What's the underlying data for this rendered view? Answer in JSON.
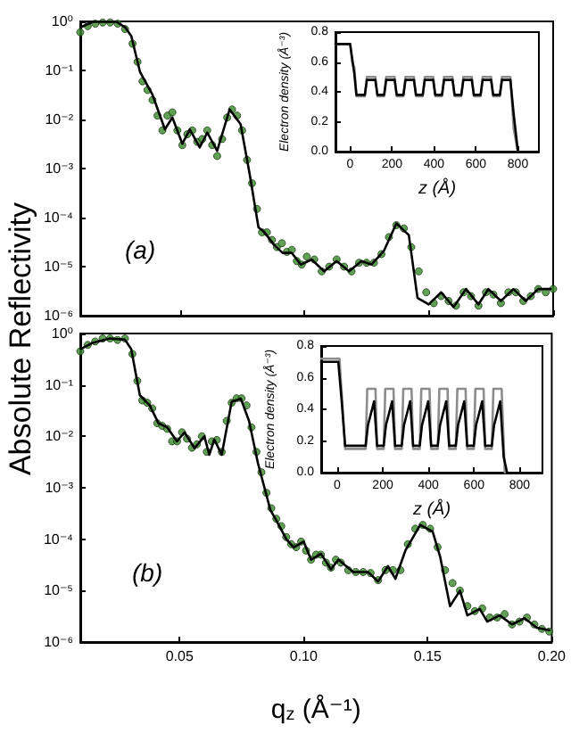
{
  "chart_data": [
    {
      "type": "line",
      "ylabel": "Absolute Reflectivity",
      "annotations": [
        "(a)"
      ],
      "log": true,
      "tick_labels": "y",
      "xlim": [
        0.01,
        0.2
      ],
      "xticks": [
        0.05,
        0.1,
        0.15,
        0.2
      ],
      "ylim": [
        1e-06,
        1
      ],
      "yticks": [
        {
          "value": 1e-06,
          "label": "10⁻⁶"
        },
        {
          "value": 1e-05,
          "label": "10⁻⁵"
        },
        {
          "value": 0.0001,
          "label": "10⁻⁴"
        },
        {
          "value": 0.001,
          "label": "10⁻³"
        },
        {
          "value": 0.01,
          "label": "10⁻²"
        },
        {
          "value": 0.1,
          "label": "10⁻¹"
        },
        {
          "value": 1,
          "label": "10⁰"
        }
      ],
      "series": [
        {
          "type": "scatter",
          "marker": "circle",
          "color": "#3a8a2a",
          "x": [
            0.01,
            0.013,
            0.016,
            0.019,
            0.022,
            0.025,
            0.028,
            0.031,
            0.033,
            0.035,
            0.037,
            0.039,
            0.041,
            0.043,
            0.045,
            0.047,
            0.049,
            0.051,
            0.053,
            0.055,
            0.057,
            0.059,
            0.061,
            0.063,
            0.065,
            0.067,
            0.069,
            0.071,
            0.073,
            0.075,
            0.077,
            0.079,
            0.081,
            0.083,
            0.085,
            0.087,
            0.089,
            0.091,
            0.093,
            0.095,
            0.097,
            0.099,
            0.101,
            0.104,
            0.107,
            0.11,
            0.113,
            0.116,
            0.119,
            0.122,
            0.125,
            0.128,
            0.131,
            0.134,
            0.137,
            0.14,
            0.143,
            0.146,
            0.149,
            0.152,
            0.155,
            0.158,
            0.161,
            0.164,
            0.167,
            0.17,
            0.173,
            0.176,
            0.179,
            0.182,
            0.185,
            0.188,
            0.191,
            0.194,
            0.197,
            0.2
          ],
          "values": [
            0.6,
            0.8,
            0.9,
            0.95,
            0.95,
            0.9,
            0.7,
            0.35,
            0.15,
            0.06,
            0.04,
            0.025,
            0.012,
            0.006,
            0.012,
            0.014,
            0.006,
            0.003,
            0.005,
            0.006,
            0.0035,
            0.004,
            0.006,
            0.003,
            0.0018,
            0.004,
            0.011,
            0.016,
            0.012,
            0.006,
            0.0015,
            0.0005,
            0.00015,
            5e-05,
            5e-05,
            3.5e-05,
            2.5e-05,
            3e-05,
            2e-05,
            2.2e-05,
            1.3e-05,
            1.1e-05,
            1.6e-05,
            1.4e-05,
            8e-06,
            1e-05,
            1.4e-05,
            1e-05,
            8e-06,
            1.2e-05,
            1.2e-05,
            1.2e-05,
            1.8e-05,
            4e-05,
            7e-05,
            6e-05,
            2.5e-05,
            8e-06,
            3e-06,
            1.8e-06,
            2.5e-06,
            2e-06,
            1.6e-06,
            3e-06,
            2.5e-06,
            1.6e-06,
            3e-06,
            2.7e-06,
            1.8e-06,
            3e-06,
            3e-06,
            2e-06,
            2.5e-06,
            3.5e-06,
            3e-06,
            3.5e-06
          ]
        },
        {
          "line_style": "solid",
          "color": "#000000",
          "x": [
            0.0102,
            0.015,
            0.0245,
            0.028,
            0.0305,
            0.034,
            0.039,
            0.044,
            0.047,
            0.051,
            0.054,
            0.058,
            0.061,
            0.065,
            0.07,
            0.0744,
            0.078,
            0.0816,
            0.084,
            0.0878,
            0.0913,
            0.095,
            0.0986,
            0.103,
            0.108,
            0.113,
            0.118,
            0.123,
            0.127,
            0.132,
            0.137,
            0.142,
            0.1455,
            0.15,
            0.155,
            0.16,
            0.165,
            0.17,
            0.174,
            0.179,
            0.184,
            0.189,
            0.194,
            0.199
          ],
          "values": [
            0.76,
            0.98,
            0.98,
            0.76,
            0.5,
            0.093,
            0.032,
            0.0063,
            0.011,
            0.0032,
            0.0063,
            0.0027,
            0.0054,
            0.0023,
            0.016,
            0.008,
            0.0008,
            6.3e-05,
            5e-05,
            2.8e-05,
            1.9e-05,
            1.9e-05,
            1.1e-05,
            1.4e-05,
            8e-06,
            1.3e-05,
            8e-06,
            1.3e-05,
            1.1e-05,
            2.1e-05,
            7.6e-05,
            4.4e-05,
            2.3e-06,
            1.7e-06,
            3e-06,
            1.5e-06,
            3.5e-06,
            1.7e-06,
            3.5e-06,
            2e-06,
            3.5e-06,
            2e-06,
            3.5e-06,
            3.5e-06
          ]
        }
      ]
    },
    {
      "type": "line",
      "xlabel": "z (Å)",
      "ylabel": "Electron density (Å⁻³)",
      "xlim": [
        -70,
        900
      ],
      "xticks": [
        0,
        200,
        400,
        600,
        800
      ],
      "ylim": [
        0,
        0.8
      ],
      "yticks": [
        {
          "value": 0,
          "label": "0.0"
        },
        0.2,
        0.4,
        0.6,
        0.8
      ],
      "series": [
        {
          "color": "#8c8c8c",
          "x": [
            -70,
            0,
            10,
            20,
            30,
            70,
            80,
            120,
            130,
            162,
            172,
            212,
            222,
            254,
            264,
            304,
            314,
            346,
            356,
            396,
            406,
            438,
            448,
            488,
            498,
            530,
            540,
            580,
            590,
            622,
            632,
            672,
            682,
            714,
            724,
            764,
            780,
            800
          ],
          "values": [
            0.72,
            0.72,
            0.6,
            0.56,
            0.37,
            0.37,
            0.5,
            0.5,
            0.37,
            0.37,
            0.5,
            0.5,
            0.37,
            0.37,
            0.5,
            0.5,
            0.37,
            0.37,
            0.5,
            0.5,
            0.37,
            0.37,
            0.5,
            0.5,
            0.37,
            0.37,
            0.5,
            0.5,
            0.37,
            0.37,
            0.5,
            0.5,
            0.37,
            0.37,
            0.5,
            0.5,
            0.15,
            0
          ]
        },
        {
          "color": "#000000",
          "x": [
            -70,
            0,
            10,
            20,
            30,
            70,
            80,
            120,
            130,
            162,
            172,
            212,
            222,
            254,
            264,
            304,
            314,
            346,
            356,
            396,
            406,
            438,
            448,
            488,
            498,
            530,
            540,
            580,
            590,
            622,
            632,
            672,
            682,
            714,
            724,
            764,
            780,
            800
          ],
          "values": [
            0.72,
            0.72,
            0.62,
            0.52,
            0.38,
            0.38,
            0.48,
            0.48,
            0.38,
            0.38,
            0.48,
            0.48,
            0.38,
            0.38,
            0.48,
            0.48,
            0.38,
            0.38,
            0.48,
            0.48,
            0.38,
            0.38,
            0.48,
            0.48,
            0.38,
            0.38,
            0.48,
            0.48,
            0.38,
            0.38,
            0.48,
            0.48,
            0.38,
            0.38,
            0.48,
            0.48,
            0.25,
            0
          ]
        }
      ]
    },
    {
      "type": "line",
      "xlabel": "q$_{z}$ (Å⁻¹)",
      "annotations": [
        "(b)"
      ],
      "log": true,
      "xlim": [
        0.01,
        0.2
      ],
      "xticks": [
        0.05,
        {
          "value": 0.1,
          "label": "0.10"
        },
        0.15,
        {
          "value": 0.2,
          "label": "0.20"
        }
      ],
      "ylim": [
        1e-06,
        1
      ],
      "yticks": [
        {
          "value": 1e-06,
          "label": "10⁻⁶"
        },
        {
          "value": 1e-05,
          "label": "10⁻⁵"
        },
        {
          "value": 0.0001,
          "label": "10⁻⁴"
        },
        {
          "value": 0.001,
          "label": "10⁻³"
        },
        {
          "value": 0.01,
          "label": "10⁻²"
        },
        {
          "value": 0.1,
          "label": "10⁻¹"
        },
        {
          "value": 1,
          "label": "10⁰"
        }
      ],
      "series": [
        {
          "type": "scatter",
          "marker": "circle",
          "color": "#3a8a2a",
          "x": [
            0.01,
            0.013,
            0.016,
            0.019,
            0.022,
            0.025,
            0.028,
            0.031,
            0.033,
            0.035,
            0.037,
            0.039,
            0.041,
            0.043,
            0.045,
            0.047,
            0.049,
            0.051,
            0.053,
            0.055,
            0.057,
            0.059,
            0.061,
            0.063,
            0.065,
            0.067,
            0.069,
            0.071,
            0.073,
            0.075,
            0.077,
            0.079,
            0.081,
            0.083,
            0.085,
            0.087,
            0.089,
            0.091,
            0.093,
            0.095,
            0.097,
            0.099,
            0.101,
            0.103,
            0.105,
            0.107,
            0.109,
            0.111,
            0.113,
            0.115,
            0.118,
            0.121,
            0.124,
            0.127,
            0.13,
            0.133,
            0.136,
            0.139,
            0.142,
            0.145,
            0.148,
            0.151,
            0.154,
            0.157,
            0.16,
            0.163,
            0.166,
            0.169,
            0.172,
            0.175,
            0.178,
            0.181,
            0.184,
            0.187,
            0.19,
            0.193,
            0.196,
            0.199
          ],
          "values": [
            0.45,
            0.6,
            0.7,
            0.8,
            0.8,
            0.75,
            0.8,
            0.4,
            0.12,
            0.05,
            0.045,
            0.035,
            0.018,
            0.016,
            0.014,
            0.008,
            0.008,
            0.012,
            0.009,
            0.006,
            0.007,
            0.01,
            0.005,
            0.008,
            0.0085,
            0.005,
            0.02,
            0.045,
            0.055,
            0.055,
            0.04,
            0.015,
            0.005,
            0.002,
            0.0008,
            0.0004,
            0.00025,
            0.00018,
            0.00011,
            8e-05,
            7e-05,
            9e-05,
            6e-05,
            4e-05,
            5e-05,
            5e-05,
            3.5e-05,
            2.8e-05,
            4e-05,
            3.5e-05,
            2.5e-05,
            2.3e-05,
            2.3e-05,
            2.2e-05,
            1.6e-05,
            2.5e-05,
            2.5e-05,
            2.5e-05,
            8e-05,
            0.00016,
            0.00019,
            0.00016,
            7e-05,
            2.5e-05,
            1.4e-05,
            1e-05,
            5e-06,
            4e-06,
            4.5e-06,
            3e-06,
            3e-06,
            3.5e-06,
            2.2e-06,
            2.5e-06,
            3e-06,
            2.2e-06,
            1.8e-06,
            1.6e-06
          ]
        },
        {
          "line_style": "solid",
          "color": "#000000",
          "x": [
            0.0102,
            0.015,
            0.022,
            0.028,
            0.0305,
            0.034,
            0.038,
            0.0415,
            0.045,
            0.049,
            0.052,
            0.056,
            0.06,
            0.062,
            0.064,
            0.067,
            0.071,
            0.0747,
            0.078,
            0.0816,
            0.0866,
            0.09,
            0.093,
            0.096,
            0.1,
            0.103,
            0.107,
            0.111,
            0.114,
            0.12,
            0.126,
            0.13,
            0.134,
            0.137,
            0.141,
            0.147,
            0.152,
            0.155,
            0.159,
            0.163,
            0.166,
            0.171,
            0.174,
            0.179,
            0.184,
            0.189,
            0.194,
            0.199
          ],
          "values": [
            0.5,
            0.66,
            0.8,
            0.76,
            0.5,
            0.063,
            0.04,
            0.018,
            0.015,
            0.008,
            0.012,
            0.0059,
            0.01,
            0.0044,
            0.0087,
            0.0044,
            0.047,
            0.054,
            0.02,
            0.003,
            0.00037,
            0.00019,
            0.0001,
            6.9e-05,
            9e-05,
            4e-05,
            5.2e-05,
            2.6e-05,
            4e-05,
            2.3e-05,
            2.3e-05,
            1.5e-05,
            3e-05,
            1.7e-05,
            6e-05,
            0.00019,
            0.00014,
            4.6e-05,
            5e-06,
            1e-05,
            3.3e-06,
            4.4e-06,
            2.5e-06,
            3.3e-06,
            2.2e-06,
            2.9e-06,
            1.9e-06,
            1.7e-06
          ]
        }
      ]
    },
    {
      "type": "line",
      "xlabel": "z (Å)",
      "ylabel": "Electron density (Å⁻³)",
      "xlim": [
        -70,
        900
      ],
      "xticks": [
        0,
        200,
        400,
        600,
        800
      ],
      "ylim": [
        0,
        0.8
      ],
      "yticks": [
        {
          "value": 0,
          "label": "0.0"
        },
        0.2,
        0.4,
        0.6,
        0.8
      ],
      "series": [
        {
          "color": "#8c8c8c",
          "x": [
            -70,
            10,
            20,
            35,
            125,
            132,
            168,
            175,
            204,
            211,
            247,
            254,
            283,
            290,
            326,
            333,
            362,
            369,
            405,
            412,
            441,
            448,
            484,
            491,
            520,
            527,
            563,
            570,
            599,
            606,
            642,
            649,
            678,
            685,
            721,
            735
          ],
          "values": [
            0.72,
            0.72,
            0.5,
            0.15,
            0.15,
            0.53,
            0.53,
            0.15,
            0.15,
            0.53,
            0.53,
            0.15,
            0.15,
            0.53,
            0.53,
            0.15,
            0.15,
            0.53,
            0.53,
            0.15,
            0.15,
            0.53,
            0.53,
            0.15,
            0.15,
            0.53,
            0.53,
            0.15,
            0.15,
            0.53,
            0.53,
            0.15,
            0.15,
            0.53,
            0.53,
            0
          ]
        },
        {
          "color": "#000000",
          "x": [
            -70,
            5,
            20,
            35,
            125,
            135,
            162,
            175,
            204,
            214,
            241,
            254,
            283,
            293,
            320,
            333,
            362,
            372,
            399,
            412,
            441,
            451,
            478,
            491,
            520,
            530,
            557,
            570,
            599,
            609,
            636,
            649,
            678,
            688,
            715,
            730,
            745
          ],
          "values": [
            0.7,
            0.7,
            0.45,
            0.17,
            0.17,
            0.3,
            0.45,
            0.17,
            0.17,
            0.3,
            0.45,
            0.17,
            0.17,
            0.3,
            0.45,
            0.17,
            0.17,
            0.3,
            0.45,
            0.17,
            0.17,
            0.3,
            0.45,
            0.17,
            0.17,
            0.3,
            0.45,
            0.17,
            0.17,
            0.3,
            0.45,
            0.17,
            0.17,
            0.3,
            0.45,
            0.1,
            0
          ]
        }
      ]
    }
  ]
}
